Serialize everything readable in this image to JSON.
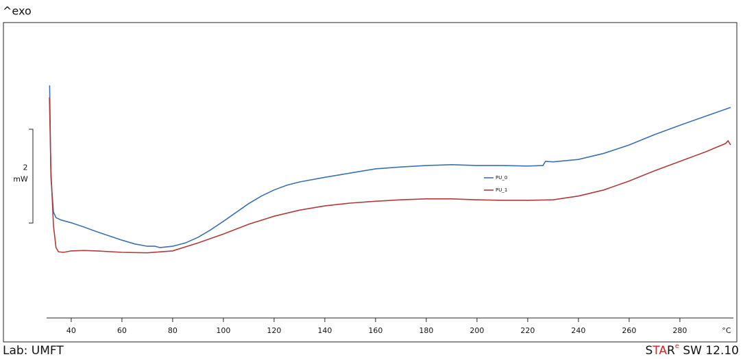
{
  "chart_data": {
    "type": "line",
    "title": "^exo",
    "footer_left": "Lab: UMFT",
    "logo": {
      "s": "S",
      "ta": "TA",
      "r": "R",
      "e": "e"
    },
    "version": "SW 12.10",
    "x_unit": "°C",
    "scale_bar": {
      "value": 2,
      "unit": "mW"
    },
    "xlim": [
      30.3,
      301.1
    ],
    "xticks": [
      40,
      60,
      80,
      100,
      120,
      140,
      160,
      180,
      200,
      220,
      240,
      260,
      280
    ],
    "ylim": [
      0,
      6.3
    ],
    "series": [
      {
        "name": "PU_0",
        "color": "#3a6fb0",
        "x": [
          31.5,
          32,
          33,
          34,
          36,
          40,
          45,
          50,
          55,
          60,
          65,
          70,
          73,
          75,
          80,
          85,
          90,
          95,
          100,
          105,
          110,
          115,
          120,
          125,
          130,
          140,
          150,
          160,
          170,
          180,
          190,
          200,
          210,
          220,
          226,
          227,
          230,
          240,
          250,
          260,
          270,
          280,
          290,
          300
        ],
        "values": [
          4.96,
          2.99,
          2.26,
          2.14,
          2.09,
          2.03,
          1.94,
          1.84,
          1.75,
          1.66,
          1.58,
          1.53,
          1.53,
          1.5,
          1.53,
          1.6,
          1.72,
          1.88,
          2.06,
          2.25,
          2.44,
          2.6,
          2.73,
          2.83,
          2.9,
          3.0,
          3.09,
          3.18,
          3.22,
          3.25,
          3.27,
          3.25,
          3.25,
          3.24,
          3.25,
          3.34,
          3.33,
          3.38,
          3.51,
          3.69,
          3.91,
          4.11,
          4.3,
          4.49
        ]
      },
      {
        "name": "PU_1",
        "color": "#b03a3a",
        "x": [
          31.4,
          32,
          33,
          34,
          35,
          37,
          40,
          45,
          50,
          60,
          70,
          80,
          90,
          100,
          110,
          120,
          130,
          140,
          150,
          160,
          170,
          180,
          190,
          200,
          210,
          220,
          230,
          240,
          250,
          260,
          270,
          280,
          290,
          298,
          299,
          300
        ],
        "values": [
          4.7,
          3.14,
          1.97,
          1.5,
          1.41,
          1.4,
          1.43,
          1.44,
          1.43,
          1.4,
          1.39,
          1.43,
          1.6,
          1.79,
          2.0,
          2.17,
          2.3,
          2.39,
          2.45,
          2.49,
          2.52,
          2.54,
          2.54,
          2.52,
          2.51,
          2.51,
          2.52,
          2.6,
          2.73,
          2.92,
          3.14,
          3.34,
          3.54,
          3.72,
          3.78,
          3.69
        ]
      }
    ]
  }
}
